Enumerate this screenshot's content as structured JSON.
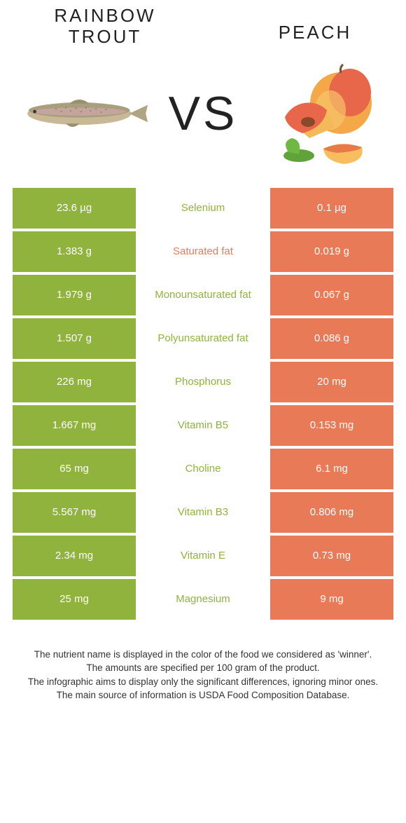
{
  "header": {
    "left_title": "Rainbow trout",
    "right_title": "Peach",
    "vs_label": "VS"
  },
  "colors": {
    "left_bg": "#8fb33c",
    "right_bg": "#e87a58",
    "left_text": "#8fb33c",
    "right_text": "#e87a58",
    "row_gap": "#ffffff"
  },
  "table": {
    "rows": [
      {
        "left": "23.6 µg",
        "mid": "Selenium",
        "right": "0.1 µg",
        "winner": "left"
      },
      {
        "left": "1.383 g",
        "mid": "Saturated fat",
        "right": "0.019 g",
        "winner": "right"
      },
      {
        "left": "1.979 g",
        "mid": "Monounsaturated fat",
        "right": "0.067 g",
        "winner": "left"
      },
      {
        "left": "1.507 g",
        "mid": "Polyunsaturated fat",
        "right": "0.086 g",
        "winner": "left"
      },
      {
        "left": "226 mg",
        "mid": "Phosphorus",
        "right": "20 mg",
        "winner": "left"
      },
      {
        "left": "1.667 mg",
        "mid": "Vitamin B5",
        "right": "0.153 mg",
        "winner": "left"
      },
      {
        "left": "65 mg",
        "mid": "Choline",
        "right": "6.1 mg",
        "winner": "left"
      },
      {
        "left": "5.567 mg",
        "mid": "Vitamin B3",
        "right": "0.806 mg",
        "winner": "left"
      },
      {
        "left": "2.34 mg",
        "mid": "Vitamin E",
        "right": "0.73 mg",
        "winner": "left"
      },
      {
        "left": "25 mg",
        "mid": "Magnesium",
        "right": "9 mg",
        "winner": "left"
      }
    ]
  },
  "footer": {
    "line1": "The nutrient name is displayed in the color of the food we considered as 'winner'.",
    "line2": "The amounts are specified per 100 gram of the product.",
    "line3": "The infographic aims to display only the significant differences, ignoring minor ones.",
    "line4": "The main source of information is USDA Food Composition Database."
  }
}
